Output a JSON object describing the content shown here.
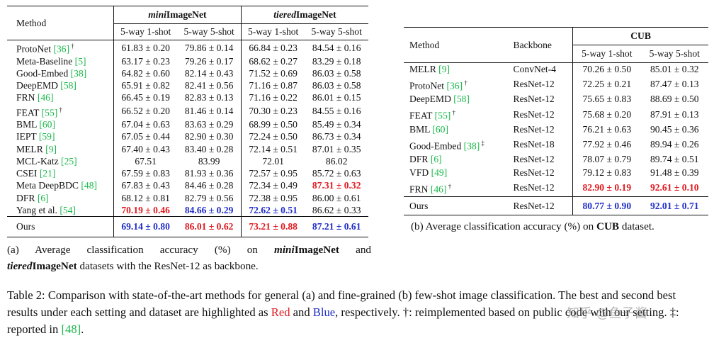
{
  "table_a": {
    "method_header": "Method",
    "group1_prefix": "mini",
    "group1_suffix": "ImageNet",
    "group2_prefix": "tiered",
    "group2_suffix": "ImageNet",
    "sub_headers": [
      "5-way 1-shot",
      "5-way 5-shot",
      "5-way 1-shot",
      "5-way 5-shot"
    ],
    "rows": [
      {
        "name": "ProtoNet ",
        "cite": "[36]",
        "sup": " †",
        "v": [
          "61.83 ± 0.20",
          "79.86 ± 0.14",
          "66.84 ± 0.23",
          "84.54 ± 0.16"
        ],
        "s": [
          "",
          "",
          "",
          ""
        ]
      },
      {
        "name": "Meta-Baseline ",
        "cite": "[5]",
        "sup": "",
        "v": [
          "63.17 ± 0.23",
          "79.26 ± 0.17",
          "68.62 ± 0.27",
          "83.29 ± 0.18"
        ],
        "s": [
          "",
          "",
          "",
          ""
        ]
      },
      {
        "name": "Good-Embed ",
        "cite": "[38]",
        "sup": "",
        "v": [
          "64.82 ± 0.60",
          "82.14 ± 0.43",
          "71.52 ± 0.69",
          "86.03 ± 0.58"
        ],
        "s": [
          "",
          "",
          "",
          ""
        ]
      },
      {
        "name": "DeepEMD ",
        "cite": "[58]",
        "sup": "",
        "v": [
          "65.91 ± 0.82",
          "82.41 ± 0.56",
          "71.16 ± 0.87",
          "86.03 ± 0.58"
        ],
        "s": [
          "",
          "",
          "",
          ""
        ]
      },
      {
        "name": "FRN ",
        "cite": "[46]",
        "sup": "",
        "v": [
          "66.45 ± 0.19",
          "82.83 ± 0.13",
          "71.16 ± 0.22",
          "86.01 ± 0.15"
        ],
        "s": [
          "",
          "",
          "",
          ""
        ]
      },
      {
        "name": "FEAT ",
        "cite": "[55]",
        "sup": " †",
        "v": [
          "66.52 ± 0.20",
          "81.46 ± 0.14",
          "70.30 ± 0.23",
          "84.55 ± 0.16"
        ],
        "s": [
          "",
          "",
          "",
          ""
        ]
      },
      {
        "name": "BML ",
        "cite": "[60]",
        "sup": "",
        "v": [
          "67.04 ± 0.63",
          "83.63 ± 0.29",
          "68.99 ± 0.50",
          "85.49 ± 0.34"
        ],
        "s": [
          "",
          "",
          "",
          ""
        ]
      },
      {
        "name": "IEPT ",
        "cite": "[59]",
        "sup": "",
        "v": [
          "67.05 ± 0.44",
          "82.90 ± 0.30",
          "72.24 ± 0.50",
          "86.73 ± 0.34"
        ],
        "s": [
          "",
          "",
          "",
          ""
        ]
      },
      {
        "name": "MELR ",
        "cite": "[9]",
        "sup": "",
        "v": [
          "67.40 ± 0.43",
          "83.40 ± 0.28",
          "72.14 ± 0.51",
          "87.01 ± 0.35"
        ],
        "s": [
          "",
          "",
          "",
          ""
        ]
      },
      {
        "name": "MCL-Katz ",
        "cite": "[25]",
        "sup": "",
        "v": [
          "67.51",
          "83.99",
          "72.01",
          "86.02"
        ],
        "s": [
          "",
          "",
          "",
          ""
        ]
      },
      {
        "name": "CSEI ",
        "cite": "[21]",
        "sup": "",
        "v": [
          "67.59 ± 0.83",
          "81.93 ± 0.36",
          "72.57 ± 0.95",
          "85.72 ± 0.63"
        ],
        "s": [
          "",
          "",
          "",
          ""
        ]
      },
      {
        "name": "Meta DeepBDC ",
        "cite": "[48]",
        "sup": "",
        "v": [
          "67.83 ± 0.43",
          "84.46 ± 0.28",
          "72.34 ± 0.49",
          "87.31 ± 0.32"
        ],
        "s": [
          "",
          "",
          "",
          "red"
        ]
      },
      {
        "name": "DFR ",
        "cite": "[6]",
        "sup": "",
        "v": [
          "68.12 ± 0.81",
          "82.79 ± 0.56",
          "72.38 ± 0.95",
          "86.00 ± 0.61"
        ],
        "s": [
          "",
          "",
          "",
          ""
        ]
      },
      {
        "name": "Yang et al. ",
        "cite": "[54]",
        "sup": "",
        "v": [
          "70.19 ± 0.46",
          "84.66 ± 0.29",
          "72.62 ± 0.51",
          "86.62 ± 0.33"
        ],
        "s": [
          "red",
          "blue",
          "blue",
          ""
        ]
      }
    ],
    "ours": {
      "name": "Ours",
      "v": [
        "69.14 ± 0.80",
        "86.01 ± 0.62",
        "73.21 ± 0.88",
        "87.21 ± 0.61"
      ],
      "s": [
        "blue",
        "red",
        "red",
        "blue"
      ]
    }
  },
  "table_b": {
    "method_header": "Method",
    "backbone_header": "Backbone",
    "group_header": "CUB",
    "sub_headers": [
      "5-way 1-shot",
      "5-way 5-shot"
    ],
    "rows": [
      {
        "name": "MELR ",
        "cite": "[9]",
        "sup": "",
        "bb": "ConvNet-4",
        "v": [
          "70.26 ± 0.50",
          "85.01 ± 0.32"
        ],
        "s": [
          "",
          ""
        ]
      },
      {
        "name": "ProtoNet ",
        "cite": "[36]",
        "sup": " †",
        "bb": "ResNet-12",
        "v": [
          "72.25 ± 0.21",
          "87.47 ± 0.13"
        ],
        "s": [
          "",
          ""
        ]
      },
      {
        "name": "DeepEMD ",
        "cite": "[58]",
        "sup": "",
        "bb": "ResNet-12",
        "v": [
          "75.65 ± 0.83",
          "88.69 ± 0.50"
        ],
        "s": [
          "",
          ""
        ]
      },
      {
        "name": "FEAT ",
        "cite": "[55]",
        "sup": " †",
        "bb": "ResNet-12",
        "v": [
          "75.68 ± 0.20",
          "87.91 ± 0.13"
        ],
        "s": [
          "",
          ""
        ]
      },
      {
        "name": "BML ",
        "cite": "[60]",
        "sup": "",
        "bb": "ResNet-12",
        "v": [
          "76.21 ± 0.63",
          "90.45 ± 0.36"
        ],
        "s": [
          "",
          ""
        ]
      },
      {
        "name": "Good-Embed ",
        "cite": "[38]",
        "sup": " ‡",
        "bb": "ResNet-18",
        "v": [
          "77.92 ± 0.46",
          "89.94 ± 0.26"
        ],
        "s": [
          "",
          ""
        ]
      },
      {
        "name": "DFR ",
        "cite": "[6]",
        "sup": "",
        "bb": "ResNet-12",
        "v": [
          "78.07 ± 0.79",
          "89.74 ± 0.51"
        ],
        "s": [
          "",
          ""
        ]
      },
      {
        "name": "VFD ",
        "cite": "[49]",
        "sup": "",
        "bb": "ResNet-12",
        "v": [
          "79.12 ± 0.83",
          "91.48 ± 0.39"
        ],
        "s": [
          "",
          ""
        ]
      },
      {
        "name": "FRN ",
        "cite": "[46]",
        "sup": " †",
        "bb": "ResNet-12",
        "v": [
          "82.90 ± 0.19",
          "92.61 ± 0.10"
        ],
        "s": [
          "red",
          "red"
        ]
      }
    ],
    "ours": {
      "name": "Ours",
      "bb": "ResNet-12",
      "v": [
        "80.77 ± 0.90",
        "92.01 ± 0.71"
      ],
      "s": [
        "blue",
        "blue"
      ]
    }
  },
  "caption_a": {
    "l1_pre": "(a)  Average  classification  accuracy  (%)  on  ",
    "l1_mini": "mini",
    "l1_imagenet": "ImageNet",
    "l1_post": "  and",
    "l2_tiered": "tiered",
    "l2_imagenet": "ImageNet",
    "l2_post": " datasets with the ResNet-12 as backbone."
  },
  "caption_b": {
    "pre": "(b) Average classification accuracy (%) on ",
    "bold": "CUB",
    "post": " dataset."
  },
  "caption_main": {
    "pre": "Table 2: Comparison with state-of-the-art methods for general (a) and fine-grained (b) few-shot image classification. The best and second best results under each setting and dataset are highlighted as ",
    "red_word": "Red",
    "mid": " and ",
    "blue_word": "Blue",
    "post1": ", respectively. †: reimplemented based on public code with our setting. ‡: reported in ",
    "cite": "[48]",
    "post2": "."
  },
  "watermark": "知乎 @鱼子酱",
  "colors": {
    "red": "#e0191f",
    "blue": "#1f2ec9",
    "citation_green": "#19b84a"
  }
}
